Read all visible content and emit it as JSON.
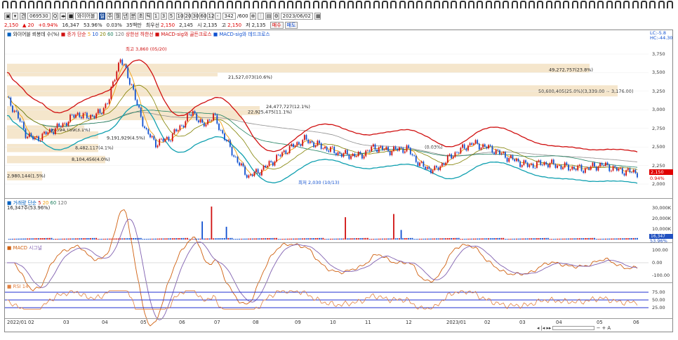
{
  "toolbar1": {
    "symbol_code": "069530",
    "stock_name": "와이어블",
    "period_buttons": [
      "주",
      "월",
      "년",
      "분",
      "초",
      "틱"
    ],
    "interval_buttons": [
      "1",
      "3",
      "5",
      "10",
      "20",
      "30",
      "60",
      "120"
    ],
    "bar_count": "342",
    "bar_total": "600",
    "date": "2023/06/02"
  },
  "quote": {
    "price": "2,150",
    "change": "20",
    "change_pct": "+0.94%",
    "volume": "16,347",
    "vol_ratio": "53.96%",
    "turnover": "0.03%",
    "label_today": "35백만",
    "best_ask_label": "최우선",
    "best_ask": "2,150",
    "best_bid": "2,145",
    "open_label": "시",
    "open": "2,135",
    "high_label": "고",
    "high": "2,150",
    "low_label": "저",
    "low": "2,135",
    "buy_label": "매수",
    "sell_label": "매도"
  },
  "legends": {
    "price": "와이어블 뢰봉데 수(%)",
    "ma_group": "종가 단순",
    "ma_vals": [
      "5",
      "10",
      "20",
      "60",
      "120"
    ],
    "env": "상한선 하한선",
    "macd_cross": "MACD-sig와 골든크로스",
    "macd_dead": "MACD-sig와 데드크로스",
    "vol": "거래량 단순",
    "vol_ma": [
      "5",
      "20",
      "60",
      "120"
    ],
    "vol_val": "16,347주(53.96%)",
    "macd": "MACD",
    "macd_sig": "시그널",
    "rsi": "RSI 14"
  },
  "right_tags": {
    "lc": "LC:-5.8",
    "hc": "HC:-44.30",
    "price_tag": "2,150",
    "pct": "0.94%",
    "vol_tag": "16,347",
    "vol_pct": "53.96%"
  },
  "yaxis_price": [
    "3,750",
    "3,500",
    "3,250",
    "3,000",
    "2,750",
    "2,500",
    "2,250",
    "2,000"
  ],
  "yaxis_vol": [
    "30,000K",
    "20,000K",
    "10,000K"
  ],
  "yaxis_macd": [
    "100.00",
    "0.00",
    "-100.00"
  ],
  "yaxis_rsi": [
    "75.00",
    "50.00",
    "25.00"
  ],
  "xaxis": [
    "2022/01",
    "02",
    "03",
    "04",
    "05",
    "06",
    "07",
    "08",
    "09",
    "10",
    "11",
    "12",
    "2023/01",
    "02",
    "03",
    "04",
    "05",
    "06"
  ],
  "annotations": {
    "max": "최고 3,860 (05/20)",
    "min": "최저 2,030 (10/13)",
    "vp": [
      "49,272,757(23.8%)",
      "21,527,073(10.6%)",
      "50,600,405(25.0%)(3,339.00 ~ 3,176.00)",
      "24,477,727(12.1%)",
      "22,925,475(11.1%)",
      "9,191,929(4.5%)",
      "6,394,189(3.1%)",
      "8,482,117(4.1%)",
      "8,104,456(4.0%)",
      "2,980,144(1.5%)",
      "(0.03%)"
    ]
  },
  "colors": {
    "upper": "#d01010",
    "lower": "#10a0b0",
    "ma5": "#f0a010",
    "ma20": "#808000",
    "ma60": "#208060",
    "candle_up": "#d01010",
    "candle_dn": "#1050d0",
    "vp": "#f5e6cc",
    "macd": "#d06010",
    "signal": "#8060b0",
    "rsi": "#e08040",
    "band": "#2030d0"
  }
}
